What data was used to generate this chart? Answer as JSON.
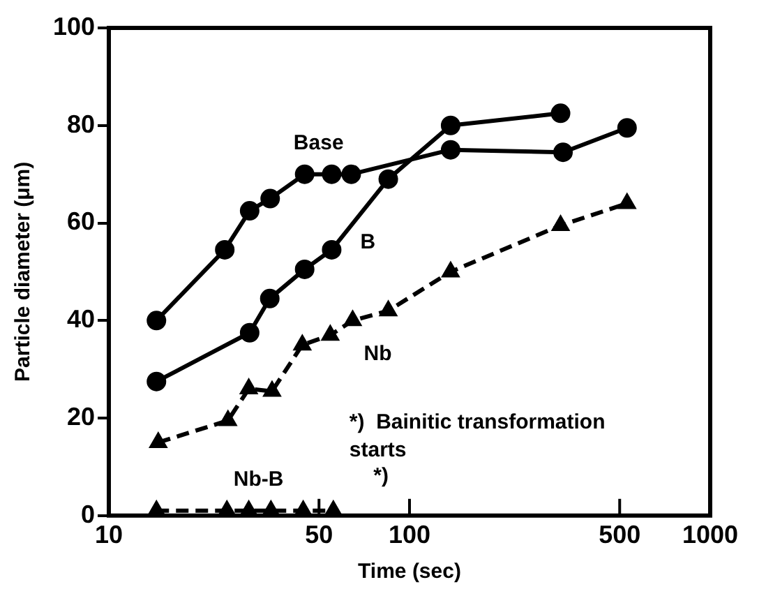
{
  "chart_data": {
    "type": "line",
    "xlabel": "Time (sec)",
    "ylabel": "Particle diameter (μm)",
    "log": "x",
    "xlim": [
      10,
      1000
    ],
    "xticks": [
      10,
      50,
      100,
      500,
      1000
    ],
    "ylim": [
      0,
      100
    ],
    "yticks": [
      0,
      20,
      40,
      60,
      80,
      100
    ],
    "legend": false,
    "series": [
      {
        "name": "Base",
        "color": "#000000",
        "marker": "circle",
        "line_style": "solid",
        "x": [
          14.4,
          24.3,
          29.4,
          34.4,
          44.8,
          55.1,
          64,
          137,
          324,
          529
        ],
        "values": [
          40,
          54.5,
          62.5,
          65,
          70,
          70,
          70,
          75,
          74.5,
          79.5
        ]
      },
      {
        "name": "B",
        "color": "#000000",
        "marker": "circle",
        "line_style": "solid",
        "x": [
          14.4,
          29.4,
          34.3,
          44.8,
          55.1,
          85,
          137,
          318
        ],
        "values": [
          27.5,
          37.5,
          44.5,
          50.5,
          54.5,
          69,
          80,
          82.5
        ]
      },
      {
        "name": "Nb",
        "color": "#000000",
        "marker": "triangle",
        "line_style": "dashed",
        "x": [
          14.6,
          24.9,
          29.2,
          34.9,
          44,
          54.5,
          64.7,
          85,
          137,
          318,
          529
        ],
        "values": [
          15,
          19.5,
          26,
          25.5,
          35,
          37,
          40,
          42,
          50,
          59.5,
          64
        ]
      },
      {
        "name": "Nb-B",
        "color": "#000000",
        "marker": "triangle",
        "line_style": "dashed",
        "x": [
          14.4,
          24.7,
          29.2,
          34.6,
          44.3,
          55.8
        ],
        "values": [
          1,
          1,
          1,
          1,
          1,
          1
        ]
      }
    ],
    "annotations": [
      "*)",
      "*)  Bainitic transformation starts"
    ]
  }
}
